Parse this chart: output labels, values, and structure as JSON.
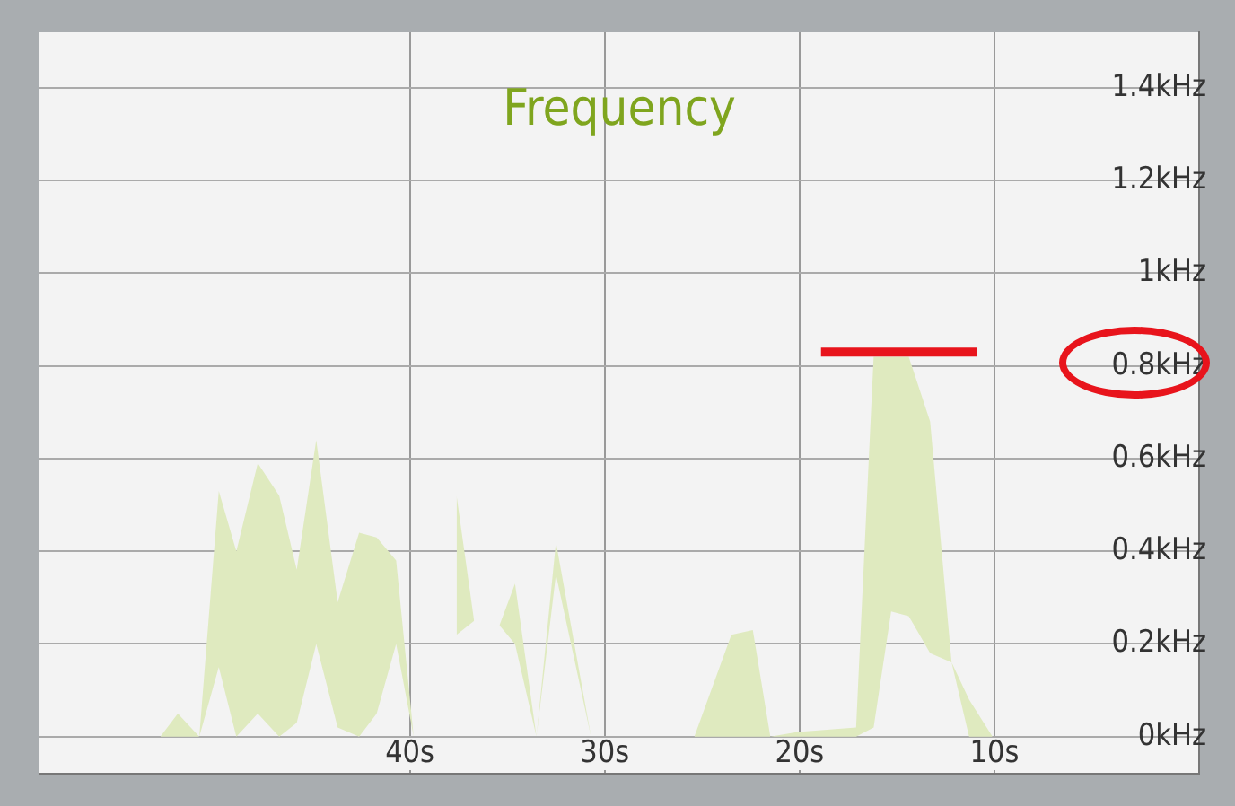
{
  "chart_data": {
    "type": "area",
    "title": "Frequency",
    "grid": true,
    "legend": false,
    "marker": "none",
    "xlim": [
      59,
      -0.5
    ],
    "xticks": [
      {
        "value": 40,
        "label": "40s"
      },
      {
        "value": 30,
        "label": "30s"
      },
      {
        "value": 20,
        "label": "20s"
      },
      {
        "value": 10,
        "label": "10s"
      }
    ],
    "ylim": [
      -0.08,
      1.52
    ],
    "yticks": [
      {
        "value": 0,
        "label": "0kHz"
      },
      {
        "value": 0.2,
        "label": "0.2kHz"
      },
      {
        "value": 0.4,
        "label": "0.4kHz"
      },
      {
        "value": 0.6,
        "label": "0.6kHz"
      },
      {
        "value": 0.8,
        "label": "0.8kHz"
      },
      {
        "value": 1,
        "label": "1kHz"
      },
      {
        "value": 1.2,
        "label": "1.2kHz"
      },
      {
        "value": 1.4,
        "label": "1.4kHz"
      }
    ],
    "series": [
      {
        "color": "#dfeabf",
        "x": [
          58.9,
          52.8,
          51.9,
          50.8,
          49.8,
          48.9,
          47.8,
          46.7,
          45.8,
          44.8,
          43.7,
          42.6,
          41.7,
          40.7,
          39.8,
          38.5,
          37.6,
          36.7,
          35.8,
          35.4,
          34.6,
          33.5,
          32.5,
          30.7,
          27,
          25.4,
          23.5,
          22.4,
          21.5,
          20.1,
          17.1,
          16.2,
          15.3,
          14.4,
          13.3,
          12.2,
          11.3,
          10.1
        ],
        "values": [
          null,
          null,
          null,
          null,
          null,
          null,
          null,
          null,
          null,
          null,
          null,
          null,
          null,
          null,
          null,
          null,
          null,
          null,
          null,
          null,
          null,
          null,
          null,
          null,
          null,
          null,
          null,
          null,
          null,
          null,
          null,
          null,
          null,
          null,
          null,
          null,
          null,
          null
        ],
        "upper": [
          0,
          0,
          0.05,
          0,
          0.53,
          0.4,
          0.59,
          0.52,
          0.36,
          0.64,
          0.29,
          0.44,
          0.43,
          0.38,
          0,
          null,
          0.52,
          0.25,
          null,
          0.24,
          0.33,
          0,
          0.42,
          0,
          null,
          0,
          0.22,
          0.23,
          0,
          0.01,
          0.02,
          0.82,
          0.82,
          0.82,
          0.68,
          0.16,
          0.08,
          0
        ],
        "lower": [
          0,
          0,
          0,
          0,
          0.15,
          0,
          0.05,
          0,
          0.03,
          0.2,
          0.02,
          0,
          0.05,
          0.2,
          0,
          null,
          0.22,
          0.25,
          null,
          0.24,
          0.2,
          0,
          0.35,
          0,
          null,
          0,
          0,
          0,
          0,
          0,
          0,
          0.02,
          0.27,
          0.26,
          0.18,
          0.16,
          0,
          0
        ]
      },
      {
        "type": "line",
        "color": "#e8141c",
        "x": [
          18.9,
          10.9
        ],
        "values": [
          0.83,
          0.83
        ]
      }
    ]
  }
}
